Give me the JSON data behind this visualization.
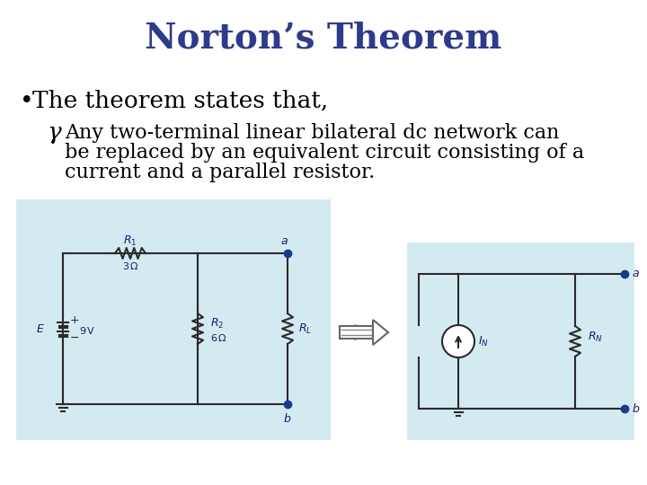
{
  "title": "Norton’s Theorem",
  "title_color": "#2E3B8B",
  "title_fontsize": 28,
  "bullet_text": "The theorem states that,",
  "bullet_fontsize": 19,
  "sub_bullet_text1": "Any two-terminal linear bilateral dc network can",
  "sub_bullet_text2": "be replaced by an equivalent circuit consisting of a",
  "sub_bullet_text3": "current and a parallel resistor.",
  "sub_bullet_fontsize": 16,
  "bg_color": "#FFFFFF",
  "box_color": "#B8DDE8",
  "circuit_color": "#1a1a6e",
  "text_color": "#000000",
  "circuit_line_color": "#2a2a2a"
}
